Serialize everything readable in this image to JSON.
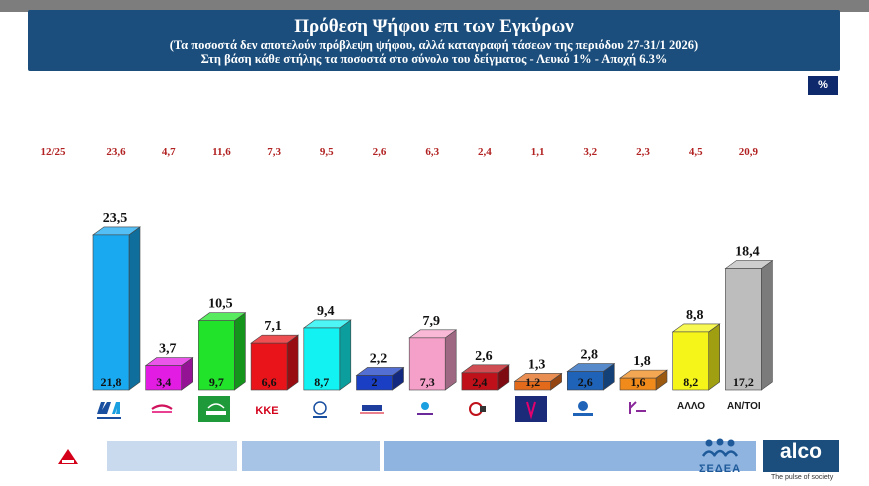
{
  "header": {
    "title": "Πρόθεση Ψήφου επι των Εγκύρων",
    "sub1": "(Τα ποσοστά δεν αποτελούν πρόβλεψη ψήφου, αλλά καταγραφή τάσεων της περιόδου 27-31/1 2026)",
    "sub2": "Στη βάση κάθε στήλης τα ποσοστά στο σύνολο του δείγματος - Λευκό 1% - Αποχή 6.3%"
  },
  "unit_badge": "%",
  "footer": {
    "sedea": "ΣΕΔΕΑ",
    "alco": "alco",
    "alco_tagline": "The pulse of society"
  },
  "colors": {
    "header_bg": "#1b4e7c",
    "prev_value": "#b22222"
  },
  "chart_data": {
    "type": "bar",
    "prev_label": "12/25",
    "categories": [
      "ΝΔ",
      "ΣΥΡΙΖΑ",
      "ΠΑΣΟΚ",
      "ΚΚΕ",
      "ΕΛΛΗΝΙΚΗ ΛΥΣΗ",
      "ΝΙΚΗ",
      "ΠΛΕΥΣΗ ΕΛΕΥΘΕΡΙΑΣ",
      "ΜέΡΑ25",
      "ΚΙΝΗΜΑ",
      "ΦΩΝΗ ΛΟΓΙΚΗΣ",
      "ΝΕΑ ΑΡΙΣΤΕΡΑ",
      "ΑΛΛΟ",
      "ΑΝ/ΤΟΙ"
    ],
    "category_labels_printed": [
      "",
      "",
      "",
      "ΚΚΕ",
      "",
      "",
      "",
      "",
      "",
      "",
      "",
      "ΑΛΛΟ",
      "ΑΝ/ΤΟΙ"
    ],
    "series": [
      {
        "values": [
          23.5,
          3.7,
          10.5,
          7.1,
          9.4,
          2.2,
          7.9,
          2.6,
          1.3,
          2.8,
          1.8,
          8.8,
          18.4
        ]
      },
      {
        "values": [
          21.8,
          3.4,
          9.7,
          6.6,
          8.7,
          2,
          7.3,
          2.4,
          1.2,
          2.6,
          1.6,
          8.2,
          17.2
        ]
      },
      {
        "values": [
          23.6,
          4.7,
          11.6,
          7.3,
          9.5,
          2.6,
          6.3,
          2.4,
          1.1,
          3.2,
          2.3,
          4.5,
          20.9
        ]
      }
    ],
    "top_labels": [
      "23,5",
      "3,7",
      "10,5",
      "7,1",
      "9,4",
      "2,2",
      "7,9",
      "2,6",
      "1,3",
      "2,8",
      "1,8",
      "8,8",
      "18,4"
    ],
    "base_labels": [
      "21,8",
      "3,4",
      "9,7",
      "6,6",
      "8,7",
      "2",
      "7,3",
      "2,4",
      "1,2",
      "2,6",
      "1,6",
      "8,2",
      "17,2"
    ],
    "prev_labels": [
      "23,6",
      "4,7",
      "11,6",
      "7,3",
      "9,5",
      "2,6",
      "6,3",
      "2,4",
      "1,1",
      "3,2",
      "2,3",
      "4,5",
      "20,9"
    ],
    "bar_colors": [
      "#19a9f0",
      "#e31ce3",
      "#20e32a",
      "#e8141a",
      "#12f2f2",
      "#1b3fc4",
      "#f5a0c8",
      "#c0111a",
      "#e36a1a",
      "#1e63b8",
      "#f08a1a",
      "#f5f51a",
      "#bdbdbd"
    ],
    "legend": "none",
    "grid": false
  }
}
